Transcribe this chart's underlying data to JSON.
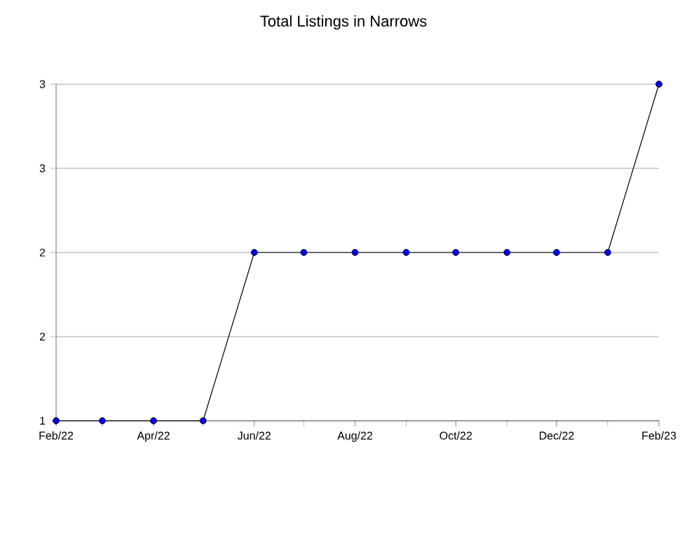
{
  "chart_data": {
    "type": "line",
    "title": "Total Listings in Narrows",
    "x": [
      "2022-02",
      "2022-03",
      "2022-04",
      "2022-05",
      "2022-06",
      "2022-07",
      "2022-08",
      "2022-09",
      "2022-10",
      "2022-11",
      "2022-12",
      "2023-01",
      "2023-02"
    ],
    "series": [
      {
        "color": "#0000ff",
        "values": [
          1,
          1,
          1,
          1,
          2,
          2,
          2,
          2,
          2,
          2,
          2,
          2,
          3
        ]
      }
    ],
    "xlim": [
      "2022-02",
      "2023-02"
    ],
    "xticks": [
      {
        "value": "2022-02",
        "label": "Feb/22"
      },
      {
        "value": "2022-04",
        "label": "Apr/22"
      },
      {
        "value": "2022-06",
        "label": "Jun/22"
      },
      {
        "value": "2022-08",
        "label": "Aug/22"
      },
      {
        "value": "2022-10",
        "label": "Oct/22"
      },
      {
        "value": "2022-12",
        "label": "Dec/22"
      },
      {
        "value": "2023-02",
        "label": "Feb/23"
      }
    ],
    "ylim": [
      1,
      3
    ],
    "yticks": [
      1,
      {
        "value": 1.5,
        "label": "2"
      },
      2,
      {
        "value": 2.5,
        "label": "3"
      },
      3
    ],
    "grid": "y",
    "marker": "circle",
    "line_style": "solid"
  }
}
